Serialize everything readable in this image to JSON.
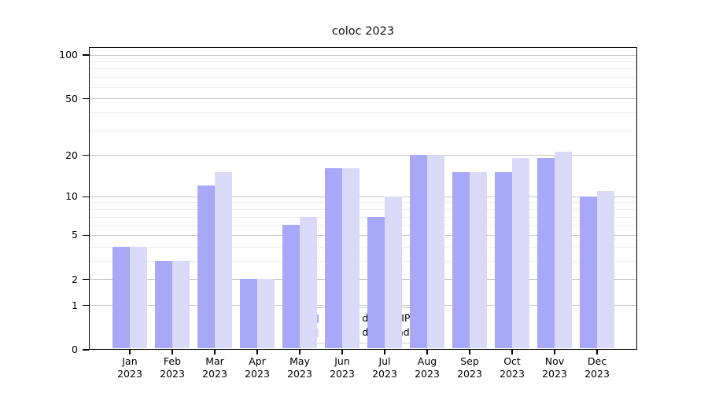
{
  "title": "coloc 2023",
  "chart_data": {
    "type": "bar",
    "title": "coloc 2023",
    "categories": [
      {
        "line1": "Jan",
        "line2": "2023"
      },
      {
        "line1": "Feb",
        "line2": "2023"
      },
      {
        "line1": "Mar",
        "line2": "2023"
      },
      {
        "line1": "Apr",
        "line2": "2023"
      },
      {
        "line1": "May",
        "line2": "2023"
      },
      {
        "line1": "Jun",
        "line2": "2023"
      },
      {
        "line1": "Jul",
        "line2": "2023"
      },
      {
        "line1": "Aug",
        "line2": "2023"
      },
      {
        "line1": "Sep",
        "line2": "2023"
      },
      {
        "line1": "Oct",
        "line2": "2023"
      },
      {
        "line1": "Nov",
        "line2": "2023"
      },
      {
        "line1": "Dec",
        "line2": "2023"
      }
    ],
    "series": [
      {
        "name": "Nb of distinct IPs",
        "color": "#a8a8f8",
        "values": [
          4,
          3,
          12,
          2,
          6,
          16,
          7,
          20,
          15,
          15,
          19,
          10
        ]
      },
      {
        "name": "Nb of downloads",
        "color": "#dadaf8",
        "values": [
          4,
          3,
          15,
          2,
          7,
          16,
          10,
          20,
          15,
          19,
          21,
          11
        ]
      }
    ],
    "y_axis": {
      "scale": "symlog-ln(1+v)",
      "range": [
        0,
        100
      ],
      "ticks": [
        0,
        1,
        2,
        5,
        10,
        20,
        50,
        100
      ],
      "minor_ticks": [
        3,
        4,
        6,
        7,
        8,
        9,
        30,
        40,
        60,
        70,
        80,
        90
      ]
    },
    "x_axis": {
      "year": "2023"
    },
    "legend": {
      "position": "lower center"
    },
    "grid": true,
    "colors": {
      "grid_major": "#c6c6c6",
      "grid_minor": "#ededed",
      "axis": "#000000",
      "background": "#ffffff"
    }
  }
}
